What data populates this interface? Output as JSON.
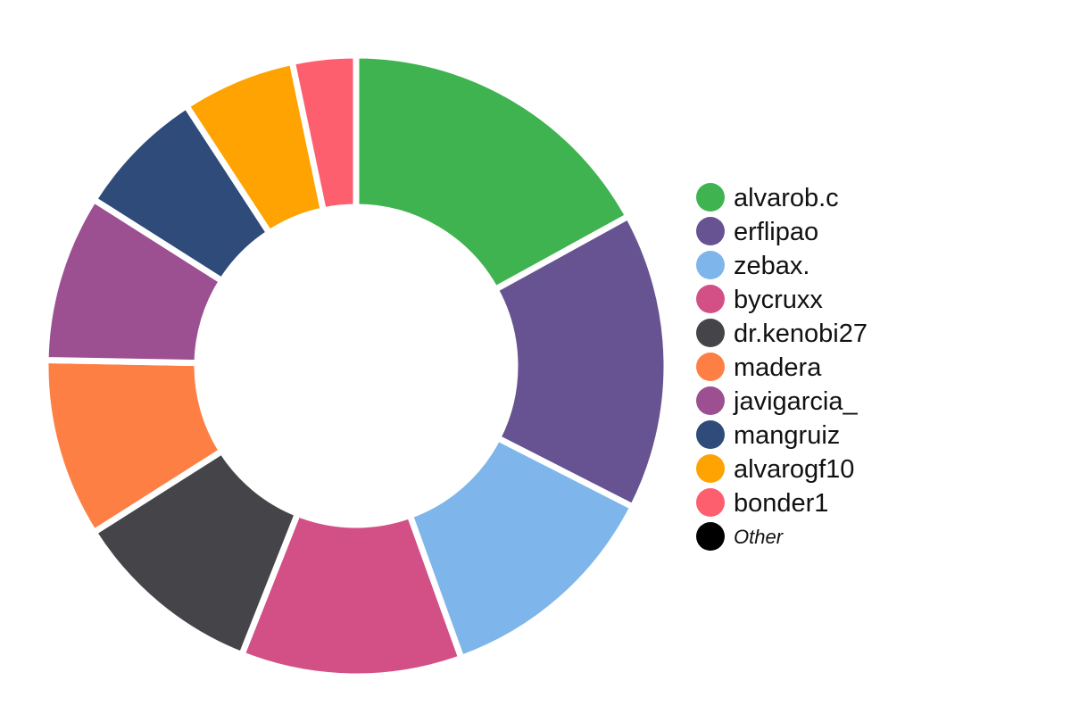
{
  "chart_data": {
    "type": "pie",
    "variant": "donut",
    "title": "",
    "slices": [
      {
        "label": "alvarob.c",
        "value": 17.0,
        "color": "#3fb34f"
      },
      {
        "label": "erflipao",
        "value": 15.5,
        "color": "#675391"
      },
      {
        "label": "zebax.",
        "value": 12.0,
        "color": "#7eb5ea"
      },
      {
        "label": "bycruxx",
        "value": 11.5,
        "color": "#d35087"
      },
      {
        "label": "dr.kenobi27",
        "value": 10.0,
        "color": "#454448"
      },
      {
        "label": "madera",
        "value": 9.3,
        "color": "#fd7f43"
      },
      {
        "label": "javigarcia_",
        "value": 8.7,
        "color": "#9c4f91"
      },
      {
        "label": "mangruiz",
        "value": 6.8,
        "color": "#2e4b79"
      },
      {
        "label": "alvarogf10",
        "value": 5.9,
        "color": "#fea301"
      },
      {
        "label": "bonder1",
        "value": 3.3,
        "color": "#fd5f6f"
      }
    ],
    "other": {
      "label": "Other",
      "value": 0,
      "color": "#000000"
    },
    "legend_position": "right"
  }
}
